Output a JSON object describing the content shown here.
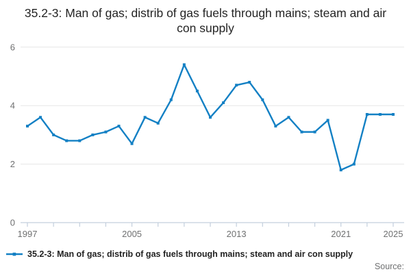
{
  "title": "35.2-3: Man of gas; distrib of gas fuels through mains; steam and air con supply",
  "legend": {
    "label": "35.2-3: Man of gas; distrib of gas fuels through mains; steam and air con supply"
  },
  "source_label": "Source:",
  "colors": {
    "line": "#1380c4",
    "grid": "#e6e6e6",
    "axis": "#c3cfdd",
    "tick_label": "#6f7071",
    "title_text": "#242424"
  },
  "chart_data": {
    "type": "line",
    "title": "35.2-3: Man of gas; distrib of gas fuels through mains; steam and air con supply",
    "x": [
      1997,
      1998,
      1999,
      2000,
      2001,
      2002,
      2003,
      2004,
      2005,
      2006,
      2007,
      2008,
      2009,
      2010,
      2011,
      2012,
      2013,
      2014,
      2015,
      2016,
      2017,
      2018,
      2019,
      2020,
      2021,
      2022,
      2023,
      2024,
      2025
    ],
    "values": [
      3.3,
      3.6,
      3.0,
      2.8,
      2.8,
      3.0,
      3.1,
      3.3,
      2.7,
      3.6,
      3.4,
      4.2,
      5.4,
      4.5,
      3.6,
      4.1,
      4.7,
      4.8,
      4.2,
      3.3,
      3.6,
      3.1,
      3.1,
      3.5,
      1.8,
      2.0,
      3.7,
      3.7,
      3.7
    ],
    "xlabel": "",
    "ylabel": "",
    "xlim": [
      1997,
      2025
    ],
    "ylim": [
      0,
      6
    ],
    "y_ticks": [
      0,
      2,
      4,
      6
    ],
    "x_major_tick_labels": [
      1997,
      2005,
      2013,
      2021,
      2025
    ],
    "x_tick_step": 2,
    "grid": "horizontal-only",
    "legend_position": "bottom-left",
    "marker": "square"
  }
}
